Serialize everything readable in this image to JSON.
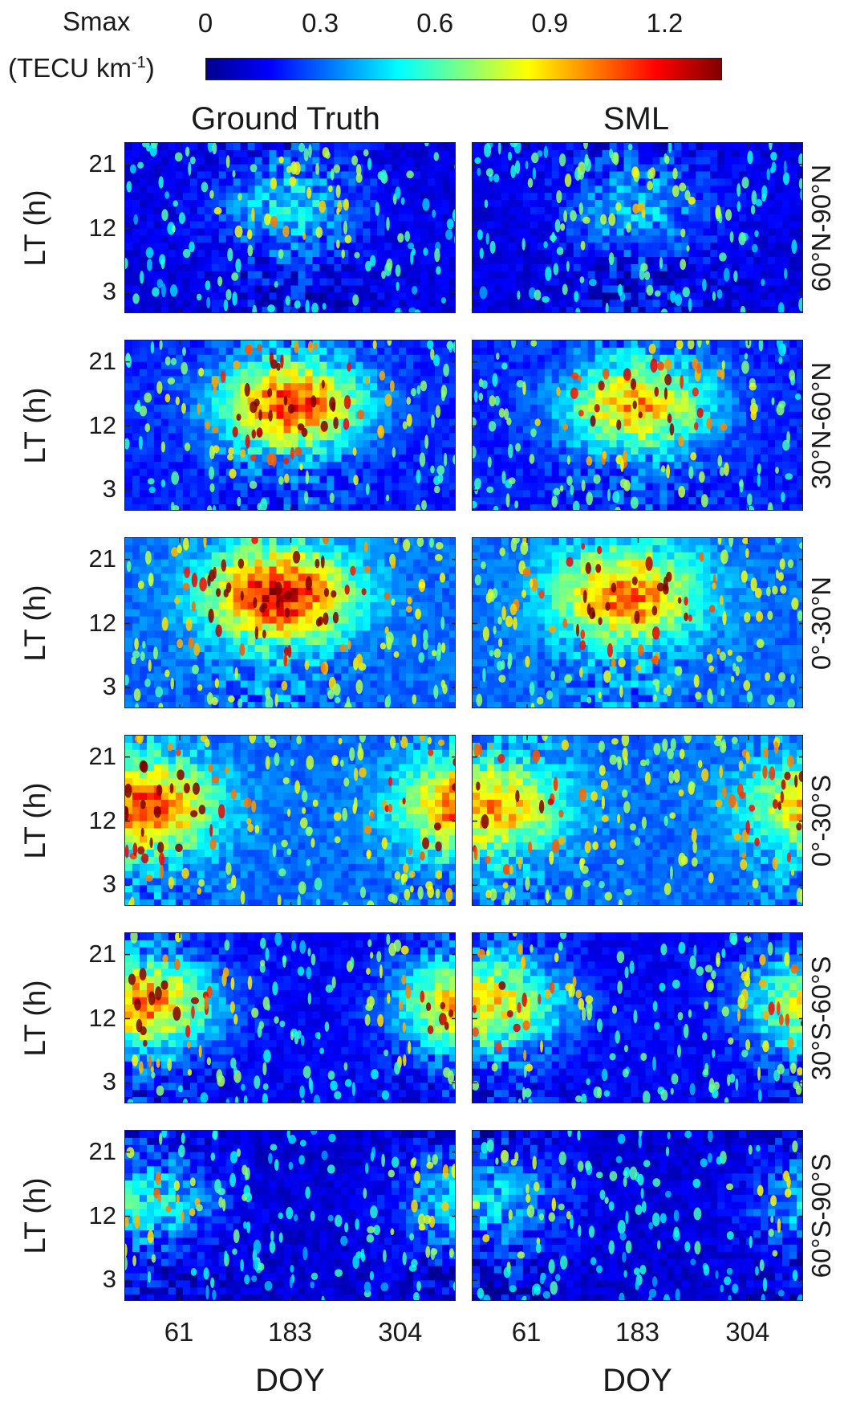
{
  "colorbar": {
    "title_line1": "Smax",
    "title_line2": "(TECU km",
    "title_sup": "-1",
    "title_close": ")",
    "ticks": [
      "0",
      "0.3",
      "0.6",
      "0.9",
      "1.2"
    ],
    "tick_values": [
      0,
      0.3,
      0.6,
      0.9,
      1.2
    ],
    "range": [
      0,
      1.35
    ],
    "colormap": "jet"
  },
  "columns": [
    "Ground Truth",
    "SML"
  ],
  "rows": [
    "60°N-90°N",
    "30°N-60°N",
    "0°-30°N",
    "0°-30°S",
    "30°S-60°S",
    "60°S-90°S"
  ],
  "y_axis": {
    "label": "LT (h)",
    "ticks": [
      "21",
      "12",
      "3"
    ],
    "tick_values": [
      21,
      12,
      3
    ],
    "range": [
      0,
      24
    ]
  },
  "x_axis": {
    "label": "DOY",
    "ticks": [
      "61",
      "183",
      "304"
    ],
    "tick_values": [
      61,
      183,
      304
    ],
    "range": [
      1,
      365
    ]
  },
  "chart_data": {
    "type": "heatmap",
    "title": "",
    "xlabel": "DOY",
    "ylabel": "LT (h)",
    "xlim": [
      1,
      365
    ],
    "ylim": [
      0,
      24
    ],
    "clim": [
      0,
      1.35
    ],
    "colorbar_label": "Smax (TECU km-1)",
    "columns": [
      "Ground Truth",
      "SML"
    ],
    "panels": [
      {
        "row": "60°N-90°N",
        "peak_doy": 183,
        "peak_lt": 15,
        "peak_value": 0.45,
        "background": 0.12
      },
      {
        "row": "30°N-60°N",
        "peak_doy": 183,
        "peak_lt": 15,
        "peak_value": 1.1,
        "background": 0.2
      },
      {
        "row": "0°-30°N",
        "peak_doy": 170,
        "peak_lt": 16,
        "peak_value": 1.2,
        "background": 0.3
      },
      {
        "row": "0°-30°S",
        "peak_doy": 20,
        "peak_lt": 14,
        "peak_value": 1.1,
        "background": 0.3
      },
      {
        "row": "30°S-60°S",
        "peak_doy": 20,
        "peak_lt": 14,
        "peak_value": 1.0,
        "background": 0.15
      },
      {
        "row": "60°S-90°S",
        "peak_doy": 20,
        "peak_lt": 14,
        "peak_value": 0.5,
        "background": 0.1
      }
    ]
  }
}
